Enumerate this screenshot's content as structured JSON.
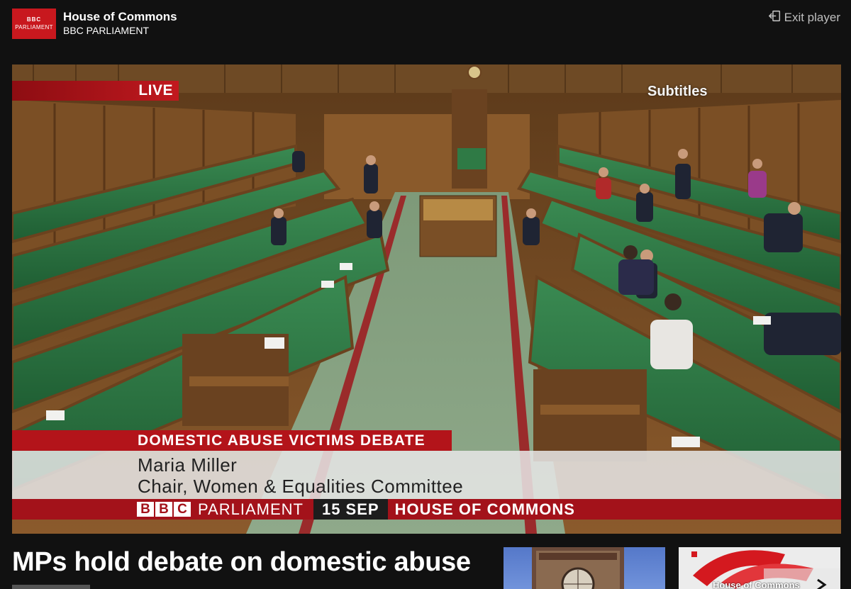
{
  "header": {
    "logo_line1": "BBC",
    "logo_line2": "PARLIAMENT",
    "title": "House of Commons",
    "subtitle": "BBC PARLIAMENT",
    "exit_label": "Exit player",
    "exit_icon": "exit-door-icon"
  },
  "video": {
    "live_label": "LIVE",
    "subtitles_label": "Subtitles",
    "caption_heading": "DOMESTIC ABUSE VICTIMS DEBATE",
    "speaker_name": "Maria Miller",
    "speaker_role": "Chair, Women & Equalities Committee",
    "strip_bbc_letters": [
      "B",
      "B",
      "C"
    ],
    "strip_channel": "PARLIAMENT",
    "strip_date": "15 SEP",
    "strip_location": "HOUSE OF COMMONS"
  },
  "story": {
    "headline": "MPs hold debate on domestic abuse"
  },
  "related": [
    {
      "thumbnail": "big-ben-thumbnail"
    },
    {
      "thumbnail": "house-of-commons-thumbnail",
      "label": "House of Commons"
    }
  ],
  "colors": {
    "bbc_red": "#c8181e",
    "bench_green": "#2f7a45",
    "wood": "#8a5a2b",
    "page_bg": "#111111"
  }
}
